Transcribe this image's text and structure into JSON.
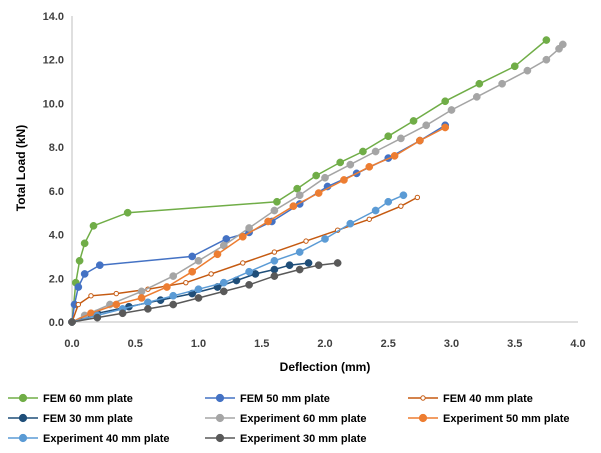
{
  "chart_data": {
    "type": "line",
    "xlabel": "Deflection (mm)",
    "ylabel": "Total Load (kN)",
    "xlim": [
      0,
      4.0
    ],
    "ylim": [
      0,
      14.0
    ],
    "x_ticks": [
      "0.0",
      "0.5",
      "1.0",
      "1.5",
      "2.0",
      "2.5",
      "3.0",
      "3.5",
      "4.0"
    ],
    "y_ticks": [
      "0.0",
      "2.0",
      "4.0",
      "6.0",
      "8.0",
      "10.0",
      "12.0",
      "14.0"
    ],
    "grid": false,
    "legend_position": "bottom",
    "series": [
      {
        "name": "FEM 60 mm plate",
        "color": "#70ad47",
        "marker": "filled",
        "x": [
          0,
          0.03,
          0.06,
          0.1,
          0.17,
          0.44,
          1.62,
          1.78,
          1.93,
          2.12,
          2.3,
          2.5,
          2.7,
          2.95,
          3.22,
          3.5,
          3.75
        ],
        "y": [
          0,
          1.8,
          2.8,
          3.6,
          4.4,
          5.0,
          5.5,
          6.1,
          6.7,
          7.3,
          7.8,
          8.5,
          9.2,
          10.1,
          10.9,
          11.7,
          12.9
        ]
      },
      {
        "name": "FEM 50 mm plate",
        "color": "#4472c4",
        "marker": "filled",
        "x": [
          0,
          0.02,
          0.05,
          0.1,
          0.22,
          0.95,
          1.22,
          1.4,
          1.58,
          1.8,
          2.02,
          2.25,
          2.5,
          2.75,
          2.95
        ],
        "y": [
          0,
          0.8,
          1.6,
          2.2,
          2.6,
          3.0,
          3.8,
          4.1,
          4.6,
          5.4,
          6.2,
          6.8,
          7.5,
          8.3,
          9.0
        ]
      },
      {
        "name": "FEM 40 mm plate",
        "color": "#c55a11",
        "marker": "hollow",
        "x": [
          0,
          0.05,
          0.15,
          0.35,
          0.6,
          0.9,
          1.1,
          1.35,
          1.6,
          1.85,
          2.1,
          2.35,
          2.6,
          2.73
        ],
        "y": [
          0,
          0.8,
          1.2,
          1.3,
          1.5,
          1.8,
          2.2,
          2.7,
          3.2,
          3.7,
          4.2,
          4.7,
          5.3,
          5.7
        ]
      },
      {
        "name": "FEM 30 mm plate",
        "color": "#1f4e79",
        "marker": "filled",
        "x": [
          0,
          0.2,
          0.45,
          0.7,
          0.95,
          1.15,
          1.3,
          1.45,
          1.6,
          1.72,
          1.87
        ],
        "y": [
          0,
          0.4,
          0.7,
          1.0,
          1.3,
          1.6,
          1.9,
          2.2,
          2.4,
          2.6,
          2.7
        ]
      },
      {
        "name": "Experiment 60 mm plate",
        "color": "#a5a5a5",
        "marker": "filled",
        "x": [
          0,
          0.1,
          0.3,
          0.55,
          0.8,
          1.0,
          1.2,
          1.4,
          1.6,
          1.8,
          2.0,
          2.2,
          2.4,
          2.6,
          2.8,
          3.0,
          3.2,
          3.4,
          3.6,
          3.75,
          3.85,
          3.88
        ],
        "y": [
          0,
          0.3,
          0.8,
          1.4,
          2.1,
          2.8,
          3.5,
          4.3,
          5.1,
          5.8,
          6.6,
          7.2,
          7.8,
          8.4,
          9.0,
          9.7,
          10.3,
          10.9,
          11.5,
          12.0,
          12.5,
          12.7
        ]
      },
      {
        "name": "Experiment 50 mm plate",
        "color": "#ed7d31",
        "marker": "filled",
        "x": [
          0,
          0.15,
          0.35,
          0.55,
          0.75,
          0.95,
          1.15,
          1.35,
          1.55,
          1.75,
          1.95,
          2.15,
          2.35,
          2.55,
          2.75,
          2.95
        ],
        "y": [
          0,
          0.4,
          0.8,
          1.1,
          1.6,
          2.3,
          3.1,
          3.9,
          4.6,
          5.3,
          5.9,
          6.5,
          7.1,
          7.6,
          8.3,
          8.9
        ]
      },
      {
        "name": "Experiment 40 mm plate",
        "color": "#5b9bd5",
        "marker": "filled",
        "x": [
          0,
          0.2,
          0.4,
          0.6,
          0.8,
          1.0,
          1.2,
          1.4,
          1.6,
          1.8,
          2.0,
          2.2,
          2.4,
          2.5,
          2.62
        ],
        "y": [
          0,
          0.3,
          0.6,
          0.9,
          1.2,
          1.5,
          1.8,
          2.3,
          2.8,
          3.2,
          3.8,
          4.5,
          5.1,
          5.5,
          5.8
        ]
      },
      {
        "name": "Experiment 30 mm plate",
        "color": "#595959",
        "marker": "filled",
        "x": [
          0,
          0.2,
          0.4,
          0.6,
          0.8,
          1.0,
          1.2,
          1.4,
          1.6,
          1.8,
          1.95,
          2.1
        ],
        "y": [
          0,
          0.2,
          0.4,
          0.6,
          0.8,
          1.1,
          1.4,
          1.7,
          2.1,
          2.4,
          2.6,
          2.7
        ]
      }
    ]
  }
}
